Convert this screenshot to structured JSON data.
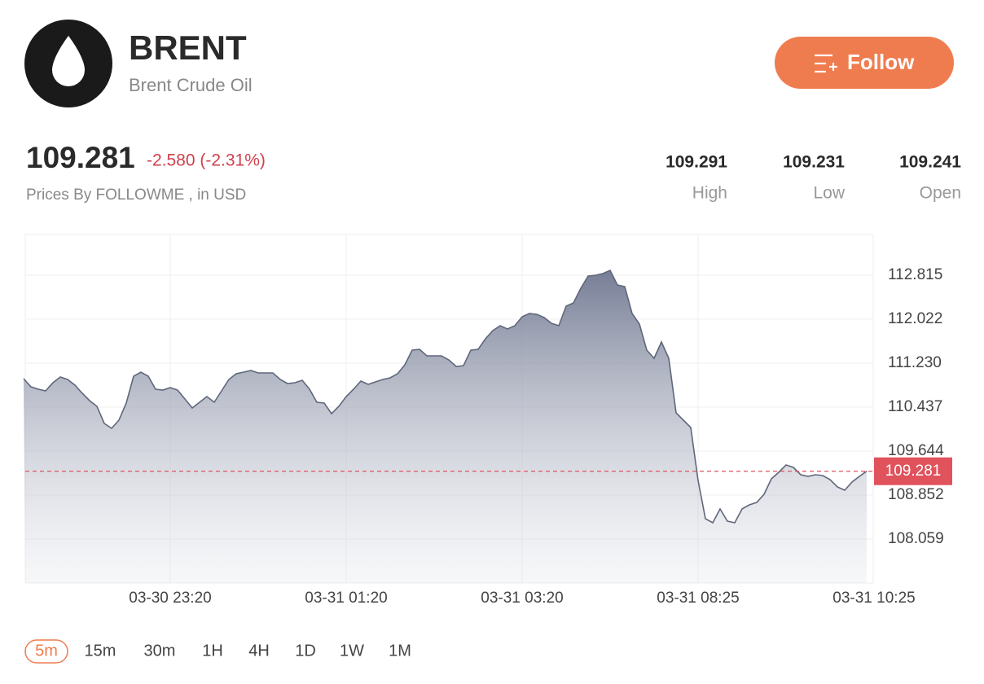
{
  "header": {
    "symbol": "BRENT",
    "name": "Brent Crude Oil",
    "follow": "Follow"
  },
  "quote": {
    "price": "109.281",
    "change": "-2.580 (-2.31%)",
    "source": "Prices By FOLLOWME , in USD",
    "stats": [
      {
        "value": "109.291",
        "label": "High"
      },
      {
        "value": "109.231",
        "label": "Low"
      },
      {
        "value": "109.241",
        "label": "Open"
      }
    ]
  },
  "chart_data": {
    "type": "area",
    "color": "#5f677a",
    "grid": true,
    "xlim": [
      0,
      116
    ],
    "xticks": [
      {
        "value": 20,
        "label": "03-30 23:20"
      },
      {
        "value": 44,
        "label": "03-31 01:20"
      },
      {
        "value": 68,
        "label": "03-31 03:20"
      },
      {
        "value": 92,
        "label": "03-31 08:25"
      },
      {
        "value": 116,
        "label": "03-31 10:25"
      }
    ],
    "ylim": [
      107.266,
      113.549
    ],
    "yticks": [
      112.815,
      112.022,
      {
        "value": 111.23,
        "label": "111.230"
      },
      110.437,
      109.644,
      108.852,
      108.059
    ],
    "last_price": 109.281,
    "last_price_color": "#e0525c",
    "values": [
      110.951,
      110.804,
      110.76,
      110.73,
      110.877,
      110.98,
      110.936,
      110.833,
      110.686,
      110.554,
      110.452,
      110.143,
      110.055,
      110.202,
      110.51,
      110.995,
      111.068,
      110.995,
      110.76,
      110.745,
      110.789,
      110.745,
      110.584,
      110.422,
      110.525,
      110.628,
      110.525,
      110.73,
      110.936,
      111.039,
      111.068,
      111.097,
      111.053,
      111.053,
      111.053,
      110.936,
      110.863,
      110.877,
      110.921,
      110.76,
      110.525,
      110.51,
      110.319,
      110.452,
      110.628,
      110.76,
      110.907,
      110.848,
      110.892,
      110.936,
      110.965,
      111.039,
      111.2,
      111.464,
      111.479,
      111.362,
      111.362,
      111.362,
      111.288,
      111.171,
      111.186,
      111.464,
      111.479,
      111.67,
      111.817,
      111.905,
      111.846,
      111.905,
      112.066,
      112.125,
      112.11,
      112.052,
      111.949,
      111.905,
      112.257,
      112.316,
      112.58,
      112.8,
      112.815,
      112.844,
      112.903,
      112.639,
      112.609,
      112.125,
      111.934,
      111.464,
      111.318,
      111.611,
      111.318,
      110.334,
      110.202,
      110.07,
      109.116,
      108.426,
      108.352,
      108.602,
      108.382,
      108.352,
      108.602,
      108.675,
      108.719,
      108.866,
      109.145,
      109.262,
      109.395,
      109.351,
      109.218,
      109.189,
      109.218,
      109.204,
      109.13,
      108.998,
      108.939,
      109.086,
      109.189,
      109.281
    ]
  },
  "timeframes": {
    "options": [
      "5m",
      "15m",
      "30m",
      "1H",
      "4H",
      "1D",
      "1W",
      "1M"
    ],
    "selected": 0
  }
}
